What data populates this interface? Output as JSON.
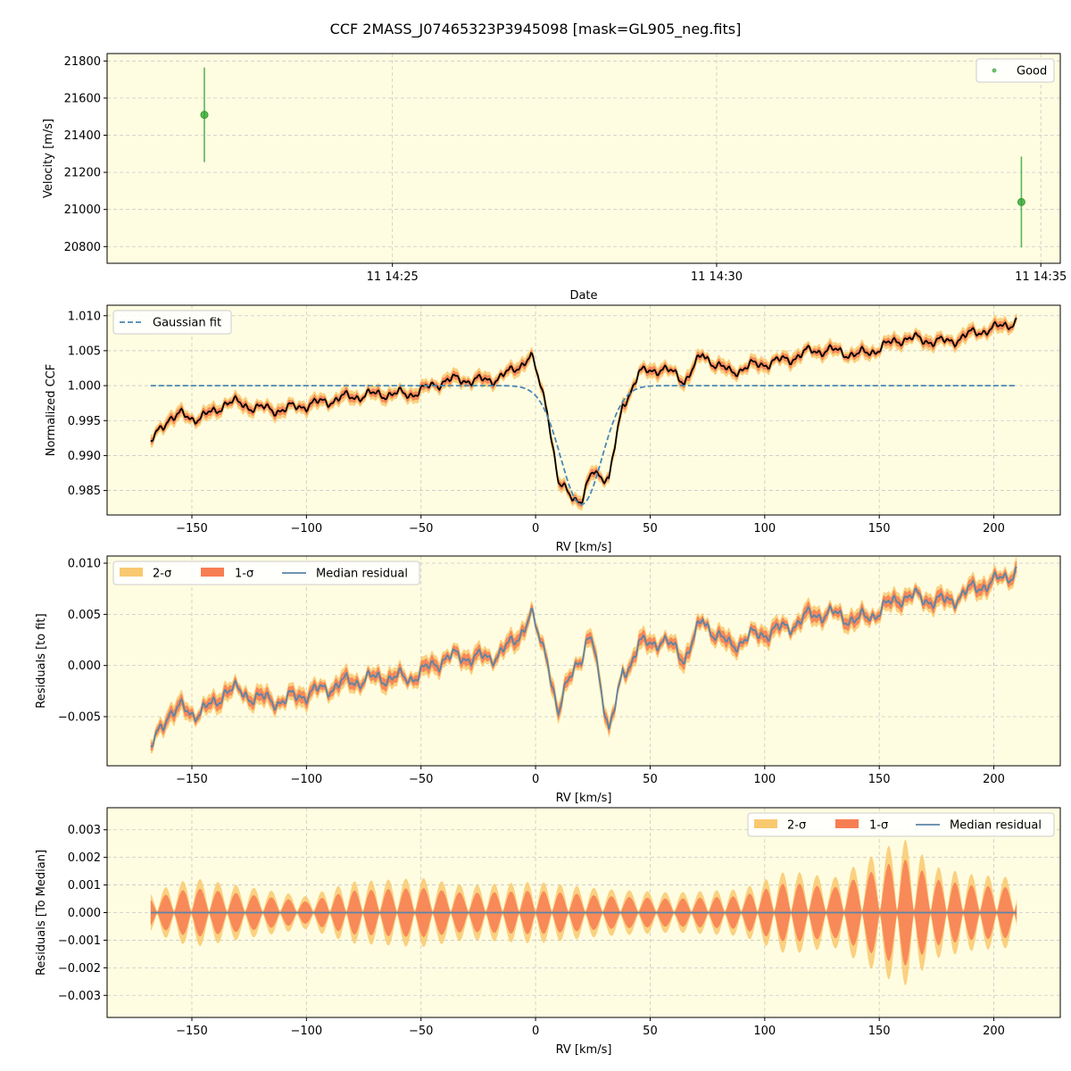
{
  "figure_title": "CCF 2MASS_J07465323P3945098 [mask=GL905_neg.fits]",
  "colors": {
    "background": "#fffde1",
    "grid": "#c8c8c8",
    "good": "#2ca02c",
    "good_errbar": "#59b659",
    "gauss": "#4a88b4",
    "ccf": "#000000",
    "band2": "#f9c96f",
    "band1": "#f77d52",
    "median": "#5b85a8"
  },
  "chart_data": [
    {
      "type": "scatter",
      "title": "",
      "xlabel": "Date",
      "ylabel": "Velocity [m/s]",
      "x_ticks": [
        "11 14:25",
        "11 14:30",
        "11 14:35"
      ],
      "x_tick_minutes": [
        25,
        30,
        35
      ],
      "xlim_minutes": [
        20.6,
        35.3
      ],
      "ylim": [
        20710,
        21840
      ],
      "y_ticks": [
        20800,
        21000,
        21200,
        21400,
        21600,
        21800
      ],
      "grid": true,
      "legend_position": "top-right",
      "series": [
        {
          "name": "Good",
          "x_minutes": [
            22.1,
            34.7
          ],
          "y": [
            21510,
            21040
          ],
          "yerr": [
            255,
            245
          ]
        }
      ]
    },
    {
      "type": "line",
      "title": "",
      "xlabel": "RV [km/s]",
      "ylabel": "Normalized CCF",
      "xlim": [
        -187,
        229
      ],
      "ylim": [
        0.9815,
        1.0115
      ],
      "x_ticks": [
        -150,
        -100,
        -50,
        0,
        50,
        100,
        150,
        200
      ],
      "y_ticks": [
        0.985,
        0.99,
        0.995,
        1.0,
        1.005,
        1.01
      ],
      "y_tick_labels": [
        "0.985",
        "0.990",
        "0.995",
        "1.000",
        "1.005",
        "1.010"
      ],
      "grid": true,
      "legend_position": "top-left",
      "legend": [
        "Gaussian fit"
      ],
      "gaussian_fit": {
        "center": 20,
        "depth": 0.017,
        "sigma": 9,
        "baseline": 1.0
      },
      "x_range": [
        -168,
        210
      ],
      "ccf_anchor_x": [
        -168,
        -160,
        -155,
        -150,
        -140,
        -135,
        -120,
        -110,
        -100,
        -85,
        -70,
        -55,
        -40,
        -20,
        -10,
        -2,
        5,
        10,
        20,
        25,
        32,
        38,
        45,
        55,
        65,
        73,
        85,
        100,
        120,
        140,
        160,
        180,
        200,
        210
      ],
      "ccf_anchor_y": [
        0.9915,
        0.9955,
        0.996,
        0.9955,
        0.996,
        0.9975,
        0.997,
        0.9965,
        0.997,
        0.9985,
        0.9985,
        0.999,
        1.0005,
        1.001,
        1.002,
        1.004,
        0.997,
        0.986,
        0.9835,
        0.9875,
        0.9865,
        0.997,
        1.002,
        1.0025,
        1.0005,
        1.0045,
        1.002,
        1.003,
        1.005,
        1.0045,
        1.0065,
        1.0065,
        1.008,
        1.0095
      ]
    },
    {
      "type": "line",
      "title": "",
      "xlabel": "RV [km/s]",
      "ylabel": "Residuals [to fit]",
      "xlim": [
        -187,
        229
      ],
      "ylim": [
        -0.0098,
        0.0107
      ],
      "x_ticks": [
        -150,
        -100,
        -50,
        0,
        50,
        100,
        150,
        200
      ],
      "y_ticks": [
        -0.005,
        0.0,
        0.005,
        0.01
      ],
      "y_tick_labels": [
        "−0.005",
        "0.000",
        "0.005",
        "0.010"
      ],
      "grid": true,
      "legend_position": "top-left",
      "legend": [
        "2-σ",
        "1-σ",
        "Median residual"
      ]
    },
    {
      "type": "line",
      "title": "",
      "xlabel": "RV [km/s]",
      "ylabel": "Residuals [To Median]",
      "xlim": [
        -187,
        229
      ],
      "ylim": [
        -0.0038,
        0.0038
      ],
      "x_ticks": [
        -150,
        -100,
        -50,
        0,
        50,
        100,
        150,
        200
      ],
      "y_ticks": [
        -0.003,
        -0.002,
        -0.001,
        0.0,
        0.001,
        0.002,
        0.003
      ],
      "y_tick_labels": [
        "−0.003",
        "−0.002",
        "−0.001",
        "0.000",
        "0.001",
        "0.002",
        "0.003"
      ],
      "grid": true,
      "legend_position": "top-right",
      "legend": [
        "2-σ",
        "1-σ",
        "Median residual"
      ],
      "envelope_anchor_x": [
        -168,
        -150,
        -120,
        -100,
        -80,
        -50,
        -30,
        0,
        30,
        60,
        90,
        110,
        130,
        150,
        160,
        175,
        190,
        210
      ],
      "envelope_anchor_y": [
        0.0005,
        0.0009,
        0.0006,
        0.0004,
        0.0008,
        0.0009,
        0.0007,
        0.0008,
        0.0006,
        0.0005,
        0.0006,
        0.0011,
        0.0009,
        0.0016,
        0.002,
        0.0012,
        0.001,
        0.0009
      ]
    }
  ]
}
